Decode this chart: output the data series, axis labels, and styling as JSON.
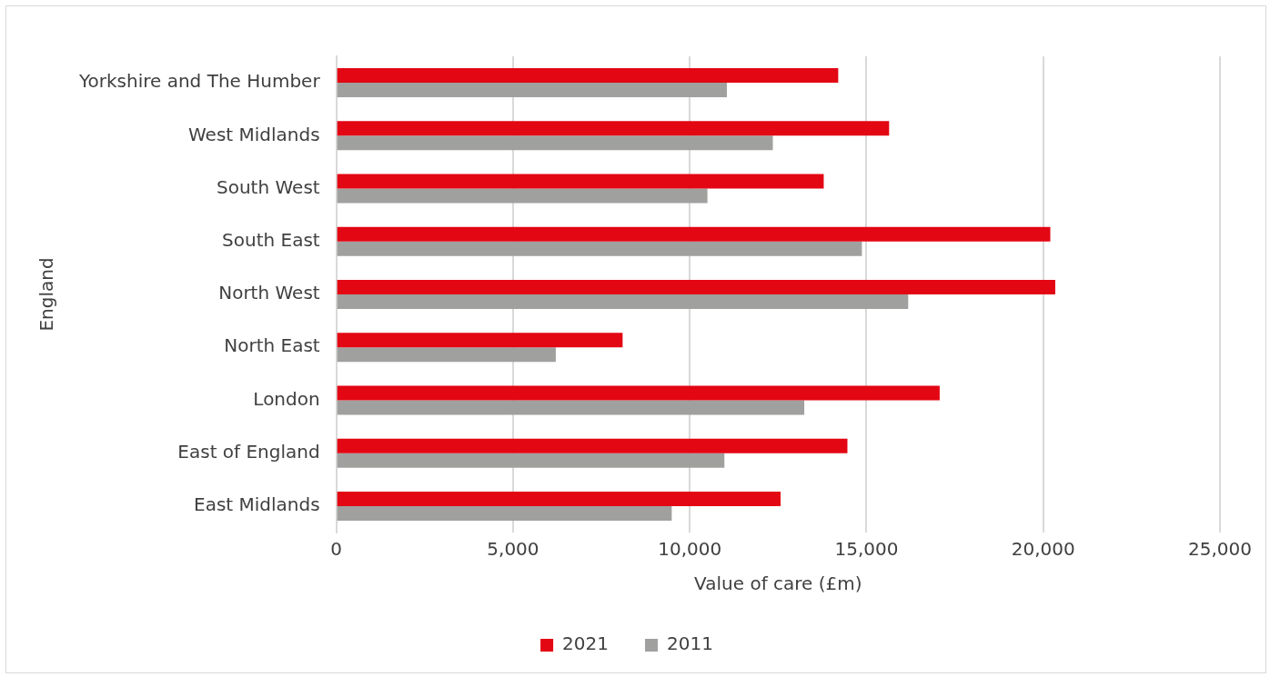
{
  "chart_data": {
    "type": "bar",
    "orientation": "horizontal",
    "xlabel": "Value of care (£m)",
    "ylabel": "England",
    "categories": [
      "Yorkshire and The Humber",
      "West Midlands",
      "South West",
      "South East",
      "North West",
      "North East",
      "London",
      "East of England",
      "East Midlands"
    ],
    "series": [
      {
        "name": "2021",
        "color": "#e30613",
        "values": [
          14200,
          15640,
          13790,
          20200,
          20340,
          8100,
          17070,
          14460,
          12570
        ]
      },
      {
        "name": "2011",
        "color": "#a0a09f",
        "values": [
          11050,
          12350,
          10500,
          14870,
          16180,
          6210,
          13240,
          10980,
          9490
        ]
      }
    ],
    "xlim": [
      0,
      25000
    ],
    "xticks": [
      {
        "value": 0,
        "label": "0"
      },
      {
        "value": 5000,
        "label": "5,000"
      },
      {
        "value": 10000,
        "label": "10,000"
      },
      {
        "value": 15000,
        "label": "15,000"
      },
      {
        "value": 20000,
        "label": "20,000"
      },
      {
        "value": 25000,
        "label": "25,000"
      }
    ],
    "grid": "x",
    "legend": "bottom"
  }
}
